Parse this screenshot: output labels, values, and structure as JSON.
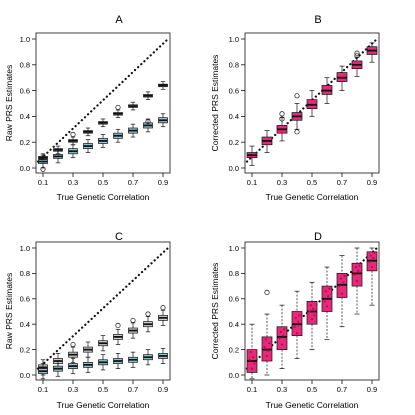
{
  "figure": {
    "colors": {
      "grey_box": "#cfcfcf",
      "teal_box": "#8fc8cf",
      "pink_box": "#e8297a",
      "pink_point": "#b01055",
      "line": "#111111"
    }
  },
  "chart_data": [
    {
      "panel_label": "A",
      "type": "boxplot",
      "xlabel": "True Genetic Correlation",
      "ylabel": "Raw PRS Estimates",
      "x_tick_labels": [
        "0.1",
        "0.3",
        "0.5",
        "0.7",
        "0.9"
      ],
      "y_tick_labels": [
        "0.0",
        "0.2",
        "0.4",
        "0.6",
        "0.8",
        "1.0"
      ],
      "ylim": [
        0,
        1.05
      ],
      "reference_line": "dotted y = x",
      "series": [
        {
          "color": "grey",
          "x": [
            0.1,
            0.2,
            0.3,
            0.4,
            0.5,
            0.6,
            0.7,
            0.8,
            0.9
          ],
          "median": [
            0.08,
            0.14,
            0.21,
            0.28,
            0.35,
            0.42,
            0.48,
            0.56,
            0.64
          ],
          "iqr": [
            [
              0.07,
              0.09
            ],
            [
              0.13,
              0.15
            ],
            [
              0.2,
              0.22
            ],
            [
              0.27,
              0.29
            ],
            [
              0.34,
              0.36
            ],
            [
              0.41,
              0.43
            ],
            [
              0.47,
              0.49
            ],
            [
              0.55,
              0.57
            ],
            [
              0.63,
              0.65
            ]
          ],
          "whisker": [
            [
              0.04,
              0.11
            ],
            [
              0.11,
              0.17
            ],
            [
              0.18,
              0.24
            ],
            [
              0.25,
              0.31
            ],
            [
              0.32,
              0.38
            ],
            [
              0.39,
              0.45
            ],
            [
              0.45,
              0.51
            ],
            [
              0.53,
              0.59
            ],
            [
              0.61,
              0.67
            ]
          ],
          "outliers": [
            [],
            [],
            [
              0.26
            ],
            [],
            [],
            [
              0.47
            ],
            [],
            [],
            []
          ]
        },
        {
          "color": "teal",
          "x": [
            0.1,
            0.2,
            0.3,
            0.4,
            0.5,
            0.6,
            0.7,
            0.8,
            0.9
          ],
          "median": [
            0.05,
            0.09,
            0.13,
            0.17,
            0.21,
            0.25,
            0.29,
            0.33,
            0.37
          ],
          "iqr": [
            [
              0.035,
              0.065
            ],
            [
              0.075,
              0.105
            ],
            [
              0.11,
              0.15
            ],
            [
              0.15,
              0.19
            ],
            [
              0.19,
              0.23
            ],
            [
              0.23,
              0.27
            ],
            [
              0.27,
              0.31
            ],
            [
              0.31,
              0.35
            ],
            [
              0.35,
              0.39
            ]
          ],
          "whisker": [
            [
              0.0,
              0.1
            ],
            [
              0.04,
              0.14
            ],
            [
              0.08,
              0.18
            ],
            [
              0.12,
              0.22
            ],
            [
              0.16,
              0.26
            ],
            [
              0.2,
              0.3
            ],
            [
              0.24,
              0.34
            ],
            [
              0.28,
              0.38
            ],
            [
              0.32,
              0.42
            ]
          ],
          "outliers": [
            [
              -0.01
            ],
            [],
            [],
            [],
            [],
            [],
            [],
            [
              0.36
            ],
            []
          ]
        }
      ]
    },
    {
      "panel_label": "B",
      "type": "boxplot",
      "xlabel": "True Genetic Correlation",
      "ylabel": "Corrected PRS Estimates",
      "x_tick_labels": [
        "0.1",
        "0.3",
        "0.5",
        "0.7",
        "0.9"
      ],
      "y_tick_labels": [
        "0.0",
        "0.2",
        "0.4",
        "0.6",
        "0.8",
        "1.0"
      ],
      "ylim": [
        0,
        1.05
      ],
      "reference_line": "dotted y = x",
      "series": [
        {
          "color": "pink",
          "x": [
            0.1,
            0.2,
            0.3,
            0.4,
            0.5,
            0.6,
            0.7,
            0.8,
            0.9
          ],
          "median": [
            0.1,
            0.21,
            0.3,
            0.4,
            0.49,
            0.6,
            0.7,
            0.8,
            0.91
          ],
          "iqr": [
            [
              0.08,
              0.12
            ],
            [
              0.18,
              0.24
            ],
            [
              0.27,
              0.33
            ],
            [
              0.37,
              0.43
            ],
            [
              0.46,
              0.53
            ],
            [
              0.57,
              0.64
            ],
            [
              0.67,
              0.74
            ],
            [
              0.77,
              0.83
            ],
            [
              0.88,
              0.94
            ]
          ],
          "whisker": [
            [
              0.02,
              0.17
            ],
            [
              0.12,
              0.29
            ],
            [
              0.21,
              0.39
            ],
            [
              0.3,
              0.5
            ],
            [
              0.4,
              0.6
            ],
            [
              0.5,
              0.7
            ],
            [
              0.6,
              0.79
            ],
            [
              0.71,
              0.86
            ],
            [
              0.82,
              0.97
            ]
          ],
          "outliers": [
            [],
            [],
            [
              0.38,
              0.42
            ],
            [
              0.56,
              0.28
            ],
            [],
            [],
            [],
            [
              0.87,
              0.89
            ],
            []
          ]
        }
      ]
    },
    {
      "panel_label": "C",
      "type": "boxplot",
      "xlabel": "True Genetic Correlation",
      "ylabel": "Raw PRS Estimates",
      "x_tick_labels": [
        "0.1",
        "0.3",
        "0.5",
        "0.7",
        "0.9"
      ],
      "y_tick_labels": [
        "0.0",
        "0.2",
        "0.4",
        "0.6",
        "0.8",
        "1.0"
      ],
      "ylim": [
        0,
        1.05
      ],
      "reference_line": "dotted y = x",
      "series": [
        {
          "color": "grey",
          "x": [
            0.1,
            0.2,
            0.3,
            0.4,
            0.5,
            0.6,
            0.7,
            0.8,
            0.9
          ],
          "median": [
            0.06,
            0.11,
            0.16,
            0.2,
            0.25,
            0.3,
            0.35,
            0.4,
            0.45
          ],
          "iqr": [
            [
              0.04,
              0.08
            ],
            [
              0.09,
              0.13
            ],
            [
              0.14,
              0.18
            ],
            [
              0.18,
              0.22
            ],
            [
              0.23,
              0.27
            ],
            [
              0.28,
              0.32
            ],
            [
              0.33,
              0.37
            ],
            [
              0.38,
              0.42
            ],
            [
              0.43,
              0.47
            ]
          ],
          "whisker": [
            [
              0.0,
              0.12
            ],
            [
              0.05,
              0.17
            ],
            [
              0.1,
              0.22
            ],
            [
              0.14,
              0.26
            ],
            [
              0.19,
              0.31
            ],
            [
              0.24,
              0.36
            ],
            [
              0.29,
              0.41
            ],
            [
              0.34,
              0.46
            ],
            [
              0.39,
              0.51
            ]
          ],
          "outliers": [
            [],
            [],
            [
              0.24
            ],
            [],
            [],
            [
              0.39
            ],
            [
              0.43
            ],
            [
              0.48
            ],
            [
              0.53
            ]
          ]
        },
        {
          "color": "teal",
          "x": [
            0.1,
            0.2,
            0.3,
            0.4,
            0.5,
            0.6,
            0.7,
            0.8,
            0.9
          ],
          "median": [
            0.03,
            0.05,
            0.07,
            0.08,
            0.1,
            0.11,
            0.12,
            0.14,
            0.15
          ],
          "iqr": [
            [
              0.01,
              0.05
            ],
            [
              0.03,
              0.07
            ],
            [
              0.05,
              0.09
            ],
            [
              0.06,
              0.1
            ],
            [
              0.08,
              0.12
            ],
            [
              0.09,
              0.13
            ],
            [
              0.1,
              0.14
            ],
            [
              0.12,
              0.16
            ],
            [
              0.13,
              0.17
            ]
          ],
          "whisker": [
            [
              -0.03,
              0.09
            ],
            [
              -0.01,
              0.11
            ],
            [
              0.01,
              0.13
            ],
            [
              0.02,
              0.14
            ],
            [
              0.04,
              0.16
            ],
            [
              0.05,
              0.17
            ],
            [
              0.06,
              0.18
            ],
            [
              0.08,
              0.2
            ],
            [
              0.09,
              0.21
            ]
          ],
          "outliers": [
            [],
            [],
            [],
            [],
            [],
            [],
            [],
            [],
            []
          ]
        }
      ]
    },
    {
      "panel_label": "D",
      "type": "boxplot",
      "xlabel": "True Genetic Correlation",
      "ylabel": "Corrected PRS Estimates",
      "x_tick_labels": [
        "0.1",
        "0.3",
        "0.5",
        "0.7",
        "0.9"
      ],
      "y_tick_labels": [
        "0.0",
        "0.2",
        "0.4",
        "0.6",
        "0.8",
        "1.0"
      ],
      "ylim": [
        0,
        1.05
      ],
      "reference_line": "dotted y = x",
      "series": [
        {
          "color": "pink",
          "x": [
            0.1,
            0.2,
            0.3,
            0.4,
            0.5,
            0.6,
            0.7,
            0.8,
            0.9
          ],
          "median": [
            0.11,
            0.2,
            0.3,
            0.4,
            0.5,
            0.6,
            0.71,
            0.8,
            0.9
          ],
          "iqr": [
            [
              0.02,
              0.2
            ],
            [
              0.11,
              0.3
            ],
            [
              0.2,
              0.38
            ],
            [
              0.31,
              0.5
            ],
            [
              0.4,
              0.58
            ],
            [
              0.5,
              0.7
            ],
            [
              0.61,
              0.8
            ],
            [
              0.7,
              0.88
            ],
            [
              0.82,
              0.97
            ]
          ],
          "whisker": [
            [
              -0.03,
              0.4
            ],
            [
              0.0,
              0.48
            ],
            [
              0.05,
              0.55
            ],
            [
              0.13,
              0.66
            ],
            [
              0.2,
              0.73
            ],
            [
              0.28,
              0.85
            ],
            [
              0.38,
              0.94
            ],
            [
              0.48,
              1.0
            ],
            [
              0.55,
              1.0
            ]
          ],
          "outliers": [
            [],
            [
              0.65
            ],
            [],
            [],
            [],
            [],
            [],
            [],
            []
          ],
          "points": [
            [
              0.12,
              0.18,
              0.05,
              0.14,
              0.09
            ],
            [
              0.22,
              0.28,
              0.15,
              0.19,
              0.25
            ],
            [
              0.29,
              0.34,
              0.24,
              0.31,
              0.36
            ],
            [
              0.38,
              0.45,
              0.33,
              0.42,
              0.47
            ],
            [
              0.5,
              0.55,
              0.44,
              0.52,
              0.47
            ],
            [
              0.58,
              0.66,
              0.54,
              0.62,
              0.68
            ],
            [
              0.7,
              0.76,
              0.64,
              0.73,
              0.78
            ],
            [
              0.79,
              0.85,
              0.74,
              0.82,
              0.86
            ],
            [
              0.89,
              0.94,
              0.85,
              0.92,
              0.96
            ]
          ]
        }
      ]
    }
  ]
}
